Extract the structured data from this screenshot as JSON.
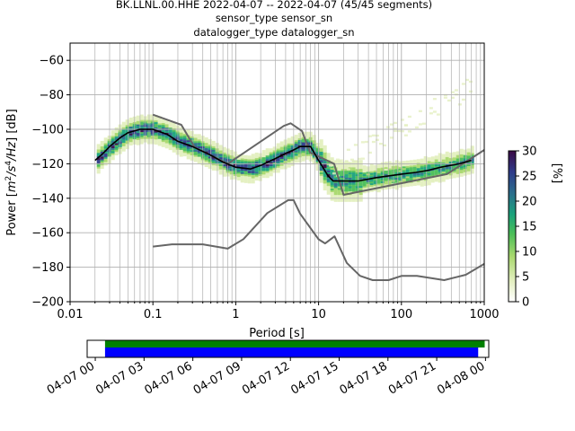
{
  "chart_data": {
    "type": "heatmap",
    "title_lines": [
      "BK.LLNL.00.HHE   2022-04-07 -- 2022-04-07  (45/45 segments)",
      "sensor_type  sensor_sn",
      "datalogger_type  datalogger_sn"
    ],
    "xlabel": "Period [s]",
    "ylabel": "Power [$m^2/s^4/Hz$] [dB]",
    "ylabel_parts": [
      "Power [",
      "m",
      "2",
      "/s",
      "4",
      "/Hz",
      "] [dB]"
    ],
    "x_scale": "log",
    "xlim": [
      0.01,
      1000
    ],
    "ylim": [
      -200,
      -50
    ],
    "x_ticks": [
      {
        "value": 0.01,
        "label": "0.01"
      },
      {
        "value": 0.1,
        "label": "0.1"
      },
      {
        "value": 1,
        "label": "1"
      },
      {
        "value": 10,
        "label": "10"
      },
      {
        "value": 100,
        "label": "100"
      },
      {
        "value": 1000,
        "label": "1000"
      }
    ],
    "y_ticks": [
      -60,
      -80,
      -100,
      -120,
      -140,
      -160,
      -180,
      -200
    ],
    "grid": true,
    "colorbar": {
      "label": "[%]",
      "range": [
        0,
        30
      ],
      "ticks": [
        0,
        5,
        10,
        15,
        20,
        25,
        30
      ],
      "colors": [
        "#ffffff",
        "#e3efbf",
        "#a9d86e",
        "#4bbe58",
        "#1aa27c",
        "#2b6d8c",
        "#2f3b8a",
        "#3b0a45"
      ]
    },
    "mean_curve": {
      "name": "",
      "color": "#000000",
      "x": [
        0.02,
        0.025,
        0.03,
        0.04,
        0.05,
        0.07,
        0.1,
        0.15,
        0.2,
        0.3,
        0.5,
        0.7,
        1,
        1.5,
        2,
        3,
        4,
        5,
        6,
        8,
        10,
        13,
        15,
        20,
        30,
        50,
        100,
        150,
        200,
        300,
        500,
        700
      ],
      "y": [
        -118,
        -114,
        -110,
        -105,
        -102,
        -100,
        -100,
        -103,
        -107,
        -110,
        -115,
        -119,
        -122,
        -123,
        -121,
        -117,
        -114,
        -112,
        -110,
        -110,
        -118,
        -127,
        -130,
        -130,
        -130,
        -128,
        -126,
        -125,
        -124,
        -122,
        -120,
        -118
      ]
    },
    "nhnm": {
      "name": "",
      "color": "#666666",
      "x": [
        0.1,
        0.22,
        0.32,
        0.8,
        3.8,
        4.6,
        6.3,
        7.9,
        15.4,
        20,
        354.8,
        1000
      ],
      "y": [
        -91.5,
        -97.4,
        -110.5,
        -120,
        -98,
        -96.5,
        -101,
        -113.5,
        -120,
        -138,
        -126,
        -112
      ]
    },
    "nlnm": {
      "name": "",
      "color": "#666666",
      "x": [
        0.1,
        0.17,
        0.4,
        0.8,
        1.24,
        2.4,
        4.3,
        5,
        6,
        10,
        12,
        15.6,
        21.9,
        31.6,
        45,
        70,
        101,
        154,
        328,
        600,
        1000
      ],
      "y": [
        -168,
        -166.7,
        -166.7,
        -169.2,
        -163.7,
        -148.6,
        -141.1,
        -141.1,
        -149,
        -163.8,
        -166.2,
        -162.1,
        -177.5,
        -185,
        -187.5,
        -187.5,
        -185,
        -185,
        -187.5,
        -184.4,
        -178
      ]
    },
    "coverage": {
      "x_ticks": [
        "04-07 00",
        "04-07 03",
        "04-07 06",
        "04-07 09",
        "04-07 12",
        "04-07 15",
        "04-07 18",
        "04-07 21",
        "04-08 00"
      ],
      "x_range_hours": [
        -0.5,
        24.2
      ],
      "data_bar": {
        "color": "#0000ff",
        "start_hours": 0.6,
        "end_hours": 23.55
      },
      "psd_bar": {
        "color": "#008000",
        "start_hours": 0.6,
        "end_hours": 23.95
      }
    }
  }
}
